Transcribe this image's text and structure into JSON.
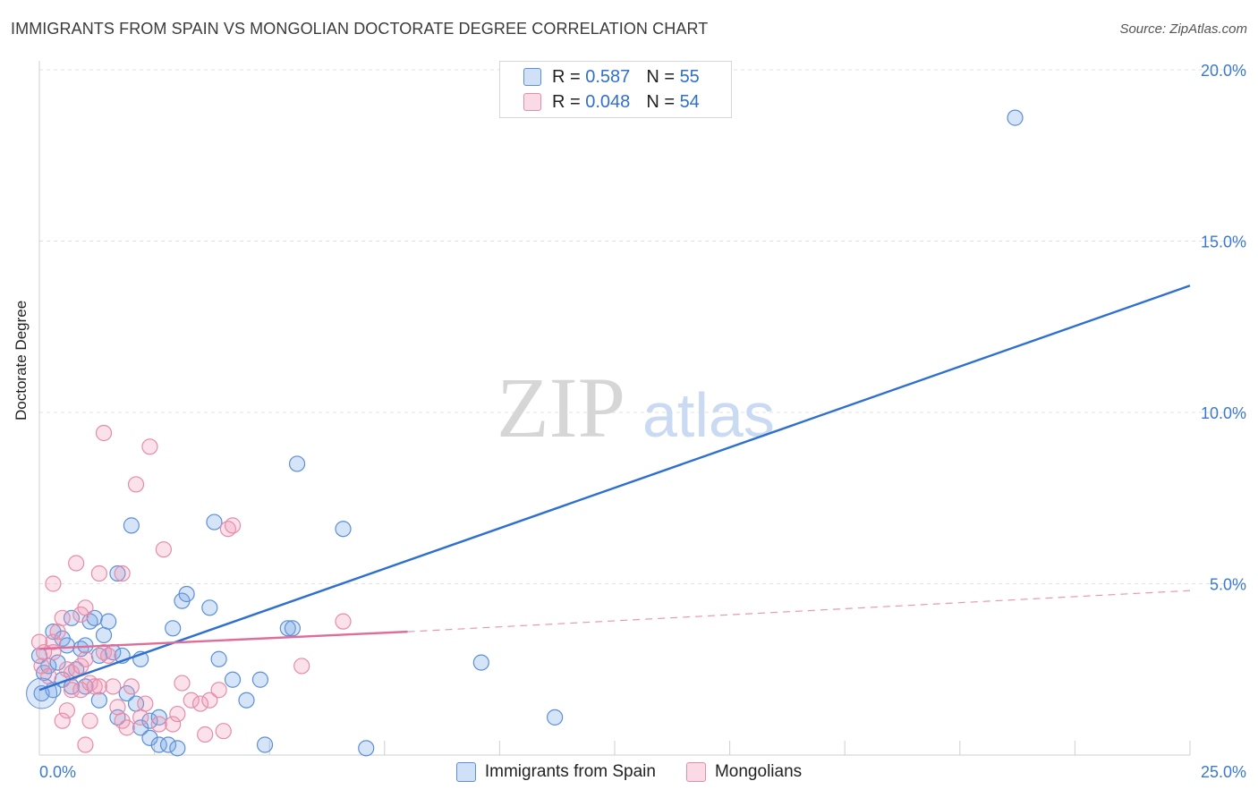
{
  "title": "IMMIGRANTS FROM SPAIN VS MONGOLIAN DOCTORATE DEGREE CORRELATION CHART",
  "source": "Source: ZipAtlas.com",
  "watermark": {
    "zip": "ZIP",
    "atlas": "atlas"
  },
  "legend_stats": [
    {
      "r_label": "R =",
      "r_value": "0.587",
      "n_label": "N =",
      "n_value": "55"
    },
    {
      "r_label": "R =",
      "r_value": "0.048",
      "n_label": "N =",
      "n_value": "54"
    }
  ],
  "chart_data": {
    "type": "scatter",
    "title": "IMMIGRANTS FROM SPAIN VS MONGOLIAN DOCTORATE DEGREE CORRELATION CHART",
    "xlabel": "",
    "ylabel": "Doctorate Degree",
    "xlim": [
      0,
      25
    ],
    "ylim": [
      0,
      20
    ],
    "x_tick_labels": [
      "0.0%",
      "25.0%"
    ],
    "y_ticks": [
      5,
      10,
      15,
      20
    ],
    "y_tick_labels": [
      "5.0%",
      "10.0%",
      "15.0%",
      "20.0%"
    ],
    "grid": true,
    "series": [
      {
        "name": "Immigrants from Spain",
        "color": "#5b8fd8",
        "fill": "rgba(120,165,230,0.30)",
        "line_color": "#2f6fd0",
        "trend": {
          "x0": 0,
          "y0": 1.9,
          "x1": 25,
          "y1": 13.7
        },
        "points": [
          [
            0.05,
            1.8
          ],
          [
            0.1,
            2.4
          ],
          [
            0.2,
            2.6
          ],
          [
            0.3,
            3.6
          ],
          [
            0.4,
            2.7
          ],
          [
            0.5,
            3.4
          ],
          [
            0.6,
            3.2
          ],
          [
            0.5,
            2.2
          ],
          [
            0.7,
            2.0
          ],
          [
            0.8,
            2.5
          ],
          [
            0.7,
            4.0
          ],
          [
            0.9,
            3.1
          ],
          [
            1.0,
            2.0
          ],
          [
            1.0,
            3.2
          ],
          [
            1.1,
            3.9
          ],
          [
            1.2,
            4.0
          ],
          [
            1.3,
            2.9
          ],
          [
            1.4,
            3.5
          ],
          [
            1.5,
            3.9
          ],
          [
            1.6,
            3.0
          ],
          [
            1.7,
            1.1
          ],
          [
            1.8,
            2.9
          ],
          [
            1.9,
            1.8
          ],
          [
            1.7,
            5.3
          ],
          [
            2.0,
            6.7
          ],
          [
            2.1,
            1.5
          ],
          [
            2.2,
            2.8
          ],
          [
            2.2,
            0.8
          ],
          [
            2.4,
            0.5
          ],
          [
            2.6,
            0.3
          ],
          [
            2.4,
            1.0
          ],
          [
            2.6,
            1.1
          ],
          [
            2.8,
            0.3
          ],
          [
            2.9,
            3.7
          ],
          [
            3.1,
            4.5
          ],
          [
            3.2,
            4.7
          ],
          [
            3.0,
            0.2
          ],
          [
            3.7,
            4.3
          ],
          [
            3.8,
            6.8
          ],
          [
            3.9,
            2.8
          ],
          [
            4.2,
            2.2
          ],
          [
            4.5,
            1.6
          ],
          [
            4.8,
            2.2
          ],
          [
            4.9,
            0.3
          ],
          [
            5.4,
            3.7
          ],
          [
            5.5,
            3.7
          ],
          [
            5.6,
            8.5
          ],
          [
            6.6,
            6.6
          ],
          [
            7.1,
            0.2
          ],
          [
            9.6,
            2.7
          ],
          [
            11.2,
            1.1
          ],
          [
            21.2,
            18.6
          ],
          [
            0.0,
            2.9
          ],
          [
            0.3,
            1.9
          ],
          [
            1.3,
            1.6
          ]
        ]
      },
      {
        "name": "Mongolians",
        "color": "#e78bab",
        "fill": "rgba(240,150,180,0.28)",
        "line_color": "#e06c98",
        "trend": {
          "x0": 0,
          "y0": 3.1,
          "x1": 8.0,
          "y1": 3.6
        },
        "trend_dashed": {
          "x0": 8.0,
          "y0": 3.6,
          "x1": 25,
          "y1": 4.8
        },
        "points": [
          [
            0.05,
            2.6
          ],
          [
            0.1,
            3.0
          ],
          [
            0.2,
            2.3
          ],
          [
            0.3,
            3.3
          ],
          [
            0.3,
            3.0
          ],
          [
            0.4,
            3.6
          ],
          [
            0.3,
            5.0
          ],
          [
            0.5,
            4.0
          ],
          [
            0.6,
            2.5
          ],
          [
            0.6,
            1.3
          ],
          [
            0.5,
            1.0
          ],
          [
            0.7,
            1.9
          ],
          [
            0.7,
            2.4
          ],
          [
            0.8,
            5.6
          ],
          [
            0.9,
            4.1
          ],
          [
            0.9,
            2.6
          ],
          [
            0.9,
            1.9
          ],
          [
            1.0,
            4.3
          ],
          [
            1.0,
            2.8
          ],
          [
            1.1,
            2.1
          ],
          [
            1.0,
            0.3
          ],
          [
            1.1,
            1.0
          ],
          [
            1.2,
            2.0
          ],
          [
            1.3,
            5.3
          ],
          [
            1.3,
            2.0
          ],
          [
            1.4,
            9.4
          ],
          [
            1.4,
            3.0
          ],
          [
            1.5,
            2.9
          ],
          [
            1.6,
            2.0
          ],
          [
            1.7,
            1.4
          ],
          [
            1.8,
            5.3
          ],
          [
            1.8,
            1.0
          ],
          [
            1.9,
            0.8
          ],
          [
            2.0,
            2.0
          ],
          [
            2.1,
            7.9
          ],
          [
            2.2,
            1.1
          ],
          [
            2.3,
            1.5
          ],
          [
            2.4,
            9.0
          ],
          [
            2.6,
            0.9
          ],
          [
            2.7,
            6.0
          ],
          [
            2.9,
            0.9
          ],
          [
            3.0,
            1.2
          ],
          [
            3.1,
            2.1
          ],
          [
            3.3,
            1.6
          ],
          [
            3.5,
            1.5
          ],
          [
            3.6,
            0.6
          ],
          [
            3.7,
            1.6
          ],
          [
            3.9,
            1.9
          ],
          [
            4.0,
            0.7
          ],
          [
            4.1,
            6.6
          ],
          [
            4.2,
            6.7
          ],
          [
            5.7,
            2.6
          ],
          [
            6.6,
            3.9
          ],
          [
            0.0,
            3.3
          ]
        ]
      }
    ]
  }
}
